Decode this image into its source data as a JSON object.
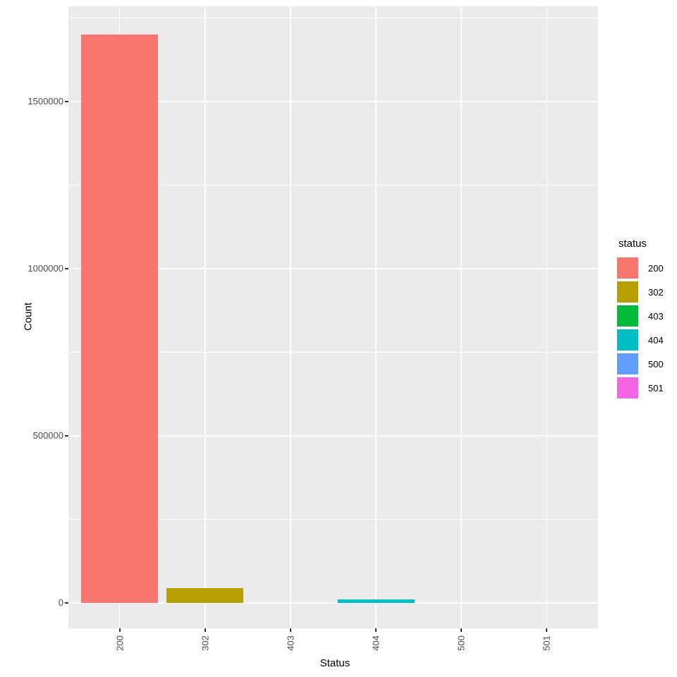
{
  "figure": {
    "xlabel": "Status",
    "ylabel": "Count"
  },
  "legend": {
    "title": "status",
    "entries": [
      {
        "label": "200",
        "color": "#F8766D"
      },
      {
        "label": "302",
        "color": "#B79F00"
      },
      {
        "label": "403",
        "color": "#00BA38"
      },
      {
        "label": "404",
        "color": "#00BFC4"
      },
      {
        "label": "500",
        "color": "#619CFF"
      },
      {
        "label": "501",
        "color": "#F564E3"
      }
    ]
  },
  "chart_data": {
    "type": "bar",
    "title": "",
    "xlabel": "Status",
    "ylabel": "Count",
    "categories": [
      "200",
      "302",
      "403",
      "404",
      "500",
      "501"
    ],
    "values": [
      1700000,
      45000,
      0,
      10000,
      0,
      0
    ],
    "colors": [
      "#F8766D",
      "#B79F00",
      "#00BA38",
      "#00BFC4",
      "#619CFF",
      "#F564E3"
    ],
    "ylim": [
      -76000,
      1785000
    ],
    "yticks": [
      0,
      500000,
      1000000,
      1500000
    ],
    "ytick_labels": [
      "0",
      "500000",
      "1000000",
      "1500000"
    ],
    "yminor": [
      250000,
      750000,
      1250000,
      1750000
    ],
    "bar_width_fraction": 0.9,
    "x_expand": 0.6,
    "grid": true,
    "legend_title": "status",
    "legend_position": "right",
    "panel_bg": "#EBEBEB",
    "grid_color": "#FFFFFF",
    "tick_color": "#333333",
    "tick_label_color": "#4D4D4D"
  }
}
